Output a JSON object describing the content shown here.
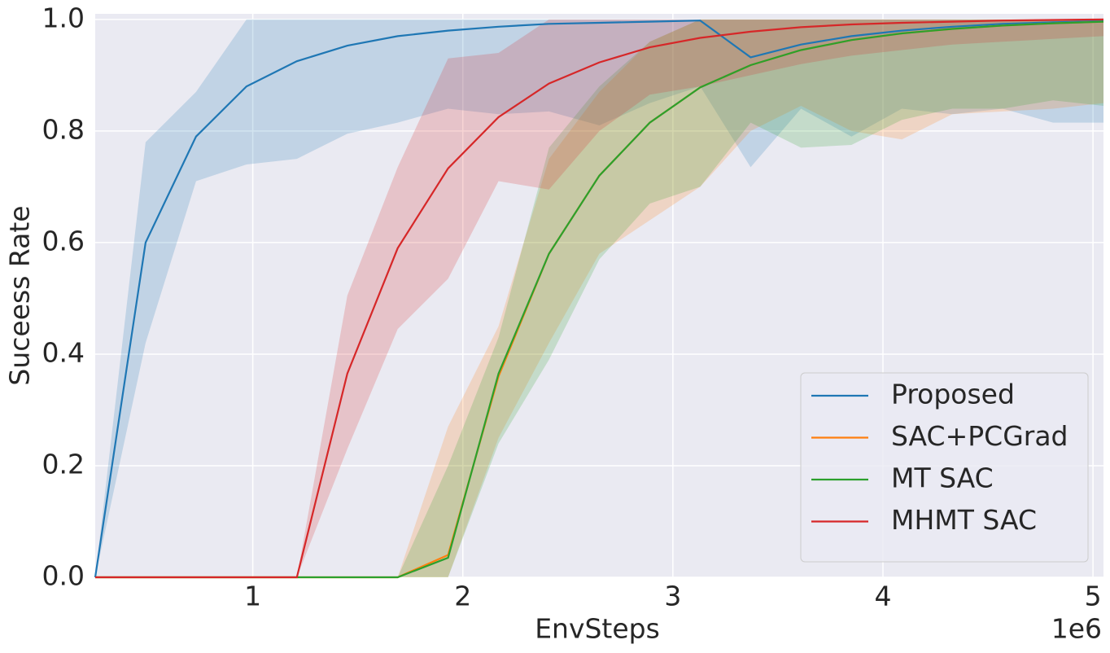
{
  "chart_data": {
    "type": "line",
    "xlabel": "EnvSteps",
    "ylabel": "Suceess Rate",
    "x_offset_label": "1e6",
    "x": [
      0.25,
      0.49,
      0.73,
      0.97,
      1.21,
      1.45,
      1.69,
      1.93,
      2.17,
      2.41,
      2.65,
      2.89,
      3.13,
      3.37,
      3.61,
      3.85,
      4.09,
      4.33,
      4.57,
      4.81,
      5.05
    ],
    "xlim": [
      0.25,
      5.05
    ],
    "ylim": [
      0,
      1.01
    ],
    "xticks": [
      1,
      2,
      3,
      4,
      5
    ],
    "yticks": [
      {
        "value": 0,
        "label": "0.0"
      },
      0.2,
      0.4,
      0.6,
      0.8,
      {
        "value": 1,
        "label": "1.0"
      }
    ],
    "grid": true,
    "legend": "lower right",
    "series": [
      {
        "name": "Proposed",
        "color": "#1f77b4",
        "values": [
          0,
          0.6,
          0.79,
          0.88,
          0.925,
          0.953,
          0.97,
          0.98,
          0.987,
          0.992,
          0.994,
          0.996,
          0.998,
          0.932,
          0.955,
          0.97,
          0.98,
          0.987,
          0.992,
          0.995,
          0.997
        ],
        "lower": [
          0,
          0.42,
          0.71,
          0.74,
          0.75,
          0.795,
          0.815,
          0.84,
          0.83,
          0.835,
          0.81,
          0.85,
          0.88,
          0.735,
          0.84,
          0.79,
          0.84,
          0.83,
          0.84,
          0.815,
          0.815
        ],
        "upper": [
          0,
          0.78,
          0.87,
          1,
          1,
          1,
          1,
          1,
          1,
          1,
          1,
          1,
          1,
          1,
          1,
          1,
          1,
          1,
          1,
          1,
          1
        ]
      },
      {
        "name": "SAC+PCGrad",
        "color": "#ff7f0e",
        "values": [
          0,
          0,
          0,
          0,
          0,
          0,
          0,
          0.04,
          0.36,
          0.58,
          0.72,
          0.815,
          0.878,
          0.918,
          0.945,
          0.963,
          0.975,
          0.983,
          0.989,
          0.993,
          0.996
        ],
        "lower": [
          0,
          0,
          0,
          0,
          0,
          0,
          0,
          0,
          0.25,
          0.42,
          0.58,
          0.64,
          0.7,
          0.8,
          0.845,
          0.8,
          0.785,
          0.83,
          0.835,
          0.84,
          0.85
        ],
        "upper": [
          0,
          0,
          0,
          0,
          0,
          0,
          0,
          0.27,
          0.45,
          0.75,
          0.87,
          0.96,
          1,
          1,
          1,
          1,
          1,
          1,
          1,
          1,
          1
        ]
      },
      {
        "name": "MT SAC",
        "color": "#2ca02c",
        "values": [
          0,
          0,
          0,
          0,
          0,
          0,
          0,
          0.035,
          0.365,
          0.58,
          0.72,
          0.815,
          0.878,
          0.918,
          0.945,
          0.963,
          0.975,
          0.983,
          0.989,
          0.993,
          0.996
        ],
        "lower": [
          0,
          0,
          0,
          0,
          0,
          0,
          0,
          0,
          0.24,
          0.39,
          0.57,
          0.67,
          0.7,
          0.815,
          0.77,
          0.775,
          0.82,
          0.84,
          0.84,
          0.855,
          0.845
        ],
        "upper": [
          0,
          0,
          0,
          0,
          0,
          0,
          0,
          0.2,
          0.43,
          0.77,
          0.88,
          0.96,
          1,
          1,
          1,
          1,
          1,
          1,
          1,
          1,
          1
        ]
      },
      {
        "name": "MHMT SAC",
        "color": "#d62728",
        "values": [
          0,
          0,
          0,
          0,
          0,
          0.365,
          0.59,
          0.733,
          0.825,
          0.885,
          0.923,
          0.95,
          0.967,
          0.978,
          0.986,
          0.991,
          0.994,
          0.996,
          0.998,
          0.999,
          1
        ],
        "lower": [
          0,
          0,
          0,
          0,
          0,
          0.23,
          0.445,
          0.535,
          0.71,
          0.695,
          0.8,
          0.865,
          0.88,
          0.9,
          0.92,
          0.935,
          0.945,
          0.955,
          0.96,
          0.965,
          0.97
        ],
        "upper": [
          0,
          0,
          0,
          0,
          0,
          0.505,
          0.735,
          0.93,
          0.94,
          1,
          1,
          1,
          1,
          1,
          1,
          1,
          1,
          1,
          1,
          1,
          1
        ]
      }
    ]
  }
}
